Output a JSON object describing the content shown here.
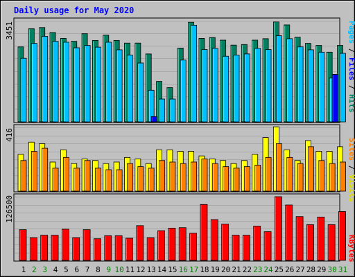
{
  "chart_data": [
    {
      "type": "bar",
      "title": "Daily usage for May 2020",
      "ymax_label": "3451",
      "ylim": [
        0,
        3451
      ],
      "categories": [
        "1",
        "2",
        "3",
        "4",
        "5",
        "6",
        "7",
        "8",
        "9",
        "10",
        "11",
        "12",
        "13",
        "14",
        "15",
        "16",
        "17",
        "18",
        "19",
        "20",
        "21",
        "22",
        "23",
        "24",
        "25",
        "26",
        "27",
        "28",
        "29",
        "30",
        "31"
      ],
      "weekend_days": [
        "2",
        "3",
        "9",
        "10",
        "16",
        "17",
        "23",
        "24",
        "30",
        "31"
      ],
      "right_label": {
        "pages": "Pages",
        "files": "Files",
        "hits": "Hits",
        "sep": " / "
      },
      "series": [
        {
          "name": "Hits",
          "color": "#008060",
          "values": [
            2560,
            3180,
            3220,
            3050,
            2850,
            2750,
            3010,
            2780,
            2960,
            2780,
            2690,
            2690,
            2320,
            1380,
            1170,
            2520,
            3400,
            2850,
            2880,
            2790,
            2620,
            2640,
            2790,
            2840,
            3410,
            3310,
            2890,
            2680,
            2610,
            2380,
            2610
          ]
        },
        {
          "name": "Files",
          "color": "#00c0ff",
          "values": [
            2170,
            2680,
            2920,
            2750,
            2720,
            2530,
            2610,
            2550,
            2720,
            2460,
            2280,
            2010,
            1080,
            780,
            780,
            2110,
            3300,
            2470,
            2510,
            2240,
            2280,
            2320,
            2510,
            2470,
            2940,
            2840,
            2560,
            2460,
            2380,
            1500,
            2340
          ]
        },
        {
          "name": "Pages",
          "color": "#0000ff",
          "values": [
            0,
            0,
            0,
            0,
            0,
            0,
            0,
            0,
            0,
            0,
            0,
            0,
            180,
            0,
            0,
            0,
            0,
            0,
            0,
            0,
            0,
            0,
            0,
            0,
            0,
            0,
            0,
            0,
            0,
            1620,
            0
          ]
        }
      ]
    },
    {
      "type": "bar",
      "ymax_label": "416",
      "ylim": [
        0,
        416
      ],
      "right_label": {
        "sites": "Sites",
        "visits": "Visits",
        "sep": " / "
      },
      "series": [
        {
          "name": "Visits",
          "color": "#ffff00",
          "values": [
            240,
            320,
            310,
            190,
            270,
            180,
            210,
            200,
            180,
            190,
            220,
            210,
            180,
            270,
            270,
            260,
            260,
            230,
            210,
            200,
            180,
            200,
            240,
            350,
            420,
            270,
            200,
            330,
            260,
            260,
            290
          ]
        },
        {
          "name": "Sites",
          "color": "#ff8000",
          "values": [
            200,
            260,
            280,
            150,
            220,
            150,
            200,
            150,
            140,
            140,
            180,
            160,
            150,
            200,
            190,
            180,
            190,
            210,
            180,
            160,
            150,
            160,
            170,
            220,
            310,
            220,
            180,
            290,
            200,
            180,
            190
          ]
        }
      ]
    },
    {
      "type": "bar",
      "ymax_label": "126500",
      "ylim": [
        0,
        126500
      ],
      "right_label": {
        "kbytes": "KBytes"
      },
      "series": [
        {
          "name": "KBytes",
          "color": "#ff0000",
          "values": [
            61000,
            45000,
            50000,
            50000,
            62000,
            45000,
            61000,
            43000,
            49000,
            49000,
            44000,
            69000,
            45000,
            59000,
            64000,
            65000,
            54000,
            111000,
            81000,
            72000,
            50000,
            50000,
            68000,
            57000,
            126500,
            110000,
            87000,
            71000,
            86000,
            71000,
            97000
          ]
        }
      ]
    }
  ]
}
